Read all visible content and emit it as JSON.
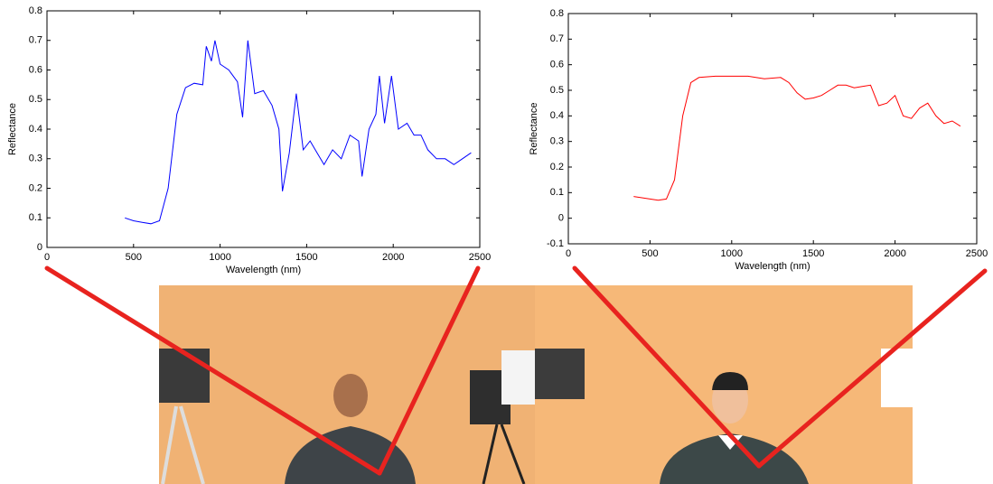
{
  "chart_data": [
    {
      "type": "line",
      "xlabel": "Wavelength (nm)",
      "ylabel": "Reflectance",
      "color": "#0000ff",
      "xlim": [
        0,
        2500
      ],
      "xticks": [
        0,
        500,
        1000,
        1500,
        2000,
        2500
      ],
      "ylim": [
        0,
        0.8
      ],
      "yticks": [
        0,
        0.1,
        0.2,
        0.3,
        0.4,
        0.5,
        0.6,
        0.7,
        0.8
      ],
      "x": [
        450,
        500,
        550,
        600,
        650,
        700,
        750,
        800,
        850,
        900,
        920,
        950,
        970,
        1000,
        1050,
        1100,
        1130,
        1160,
        1200,
        1250,
        1300,
        1340,
        1360,
        1400,
        1440,
        1480,
        1520,
        1560,
        1600,
        1650,
        1700,
        1750,
        1800,
        1820,
        1860,
        1900,
        1920,
        1950,
        1990,
        2030,
        2080,
        2120,
        2160,
        2200,
        2250,
        2300,
        2350,
        2400,
        2450
      ],
      "values": [
        0.1,
        0.09,
        0.085,
        0.08,
        0.09,
        0.2,
        0.45,
        0.54,
        0.555,
        0.55,
        0.68,
        0.63,
        0.7,
        0.62,
        0.6,
        0.56,
        0.44,
        0.7,
        0.52,
        0.53,
        0.48,
        0.4,
        0.19,
        0.32,
        0.52,
        0.33,
        0.36,
        0.32,
        0.28,
        0.33,
        0.3,
        0.38,
        0.36,
        0.24,
        0.4,
        0.45,
        0.58,
        0.42,
        0.58,
        0.4,
        0.42,
        0.38,
        0.38,
        0.33,
        0.3,
        0.3,
        0.28,
        0.3,
        0.32
      ]
    },
    {
      "type": "line",
      "xlabel": "Wavelength (nm)",
      "ylabel": "Reflectance",
      "color": "#ff0000",
      "xlim": [
        0,
        2500
      ],
      "xticks": [
        0,
        500,
        1000,
        1500,
        2000,
        2500
      ],
      "ylim": [
        -0.1,
        0.8
      ],
      "yticks": [
        -0.1,
        0,
        0.1,
        0.2,
        0.3,
        0.4,
        0.5,
        0.6,
        0.7,
        0.8
      ],
      "x": [
        400,
        450,
        500,
        550,
        600,
        650,
        700,
        750,
        800,
        900,
        1000,
        1100,
        1200,
        1300,
        1350,
        1400,
        1450,
        1500,
        1550,
        1600,
        1650,
        1700,
        1750,
        1800,
        1850,
        1900,
        1950,
        2000,
        2050,
        2100,
        2150,
        2200,
        2250,
        2300,
        2350,
        2400
      ],
      "values": [
        0.085,
        0.08,
        0.075,
        0.07,
        0.075,
        0.15,
        0.4,
        0.53,
        0.55,
        0.555,
        0.555,
        0.555,
        0.545,
        0.55,
        0.53,
        0.49,
        0.465,
        0.47,
        0.48,
        0.5,
        0.52,
        0.52,
        0.51,
        0.515,
        0.52,
        0.44,
        0.45,
        0.48,
        0.4,
        0.39,
        0.43,
        0.45,
        0.4,
        0.37,
        0.38,
        0.36
      ]
    }
  ]
}
